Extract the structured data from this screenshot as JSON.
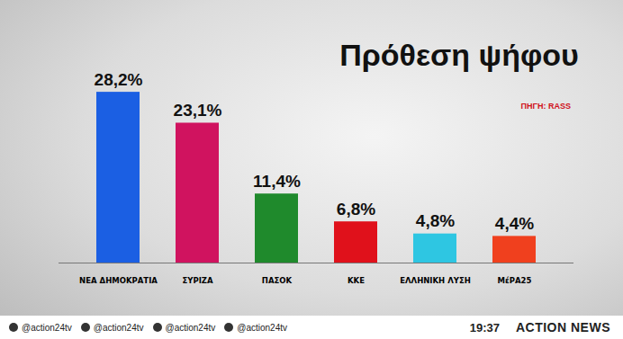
{
  "chart_data": {
    "type": "bar",
    "title": "Πρόθεση ψήφου",
    "subtitle": "ΠΗΓΗ: RASS",
    "categories": [
      "ΝΕΑ ΔΗΜΟΚΡΑΤΙΑ",
      "ΣΥΡΙΖΑ",
      "ΠΑΣΟΚ",
      "ΚΚΕ",
      "ΕΛΛΗΝΙΚΗ ΛΥΣΗ",
      "ΜέΡΑ25"
    ],
    "values": [
      28.2,
      23.1,
      11.4,
      6.8,
      4.8,
      4.4
    ],
    "value_labels": [
      "28,2%",
      "23,1%",
      "11,4%",
      "6,8%",
      "4,8%",
      "4,4%"
    ],
    "colors": [
      "#1b5fe3",
      "#d0135f",
      "#1f8a2c",
      "#e0111b",
      "#2ec6e2",
      "#f0401e"
    ],
    "ylim": [
      0,
      30
    ],
    "grid": false,
    "data_labels": true,
    "tick_labels": "x"
  },
  "footer": {
    "handles": [
      "@action24tv",
      "@action24tv",
      "@action24tv",
      "@action24tv"
    ],
    "time": "19:37",
    "brand": "ACTION NEWS"
  }
}
